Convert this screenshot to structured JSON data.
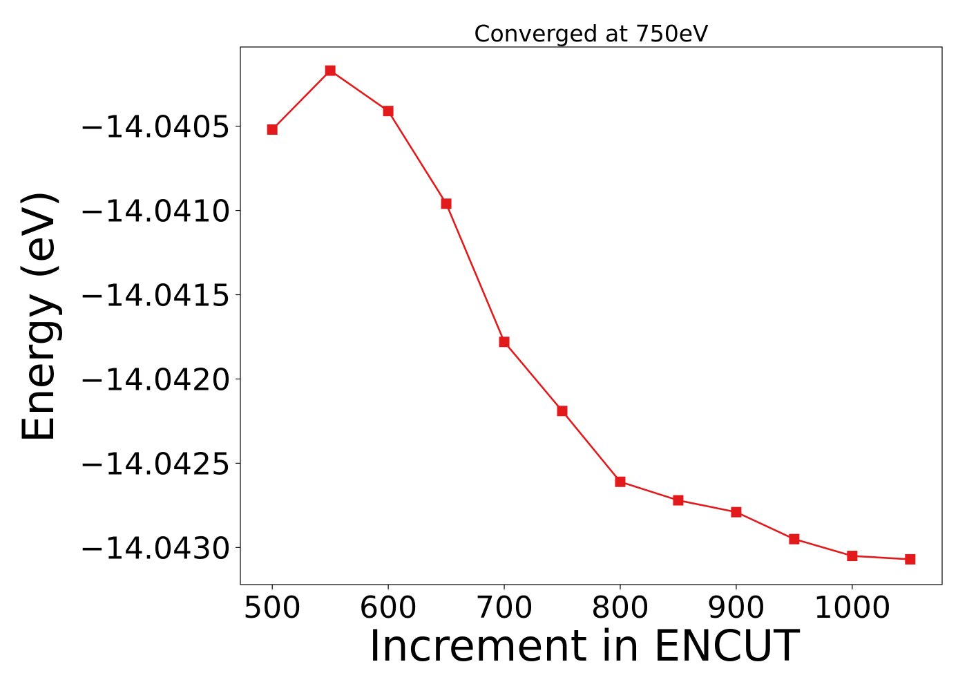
{
  "chart_data": {
    "type": "line",
    "title": "Converged at 750eV",
    "xlabel": "Increment in ENCUT",
    "ylabel": "Energy (eV)",
    "xlim": [
      472.5,
      1077.5
    ],
    "ylim": [
      -14.04322,
      -14.04003
    ],
    "xticks": [
      500,
      600,
      700,
      800,
      900,
      1000
    ],
    "xtick_labels": [
      "500",
      "600",
      "700",
      "800",
      "900",
      "1000"
    ],
    "yticks": [
      -14.0405,
      -14.041,
      -14.0415,
      -14.042,
      -14.0425,
      -14.043
    ],
    "ytick_labels": [
      "−14.0405",
      "−14.0410",
      "−14.0415",
      "−14.0420",
      "−14.0425",
      "−14.0430"
    ],
    "grid": false,
    "series": [
      {
        "color": "#e31a1c",
        "marker": "square",
        "x": [
          500,
          550,
          600,
          650,
          700,
          750,
          800,
          850,
          900,
          950,
          1000,
          1050
        ],
        "y": [
          -14.04052,
          -14.04017,
          -14.04041,
          -14.04096,
          -14.04178,
          -14.04219,
          -14.04261,
          -14.04272,
          -14.04279,
          -14.04295,
          -14.04305,
          -14.04307
        ]
      }
    ]
  }
}
